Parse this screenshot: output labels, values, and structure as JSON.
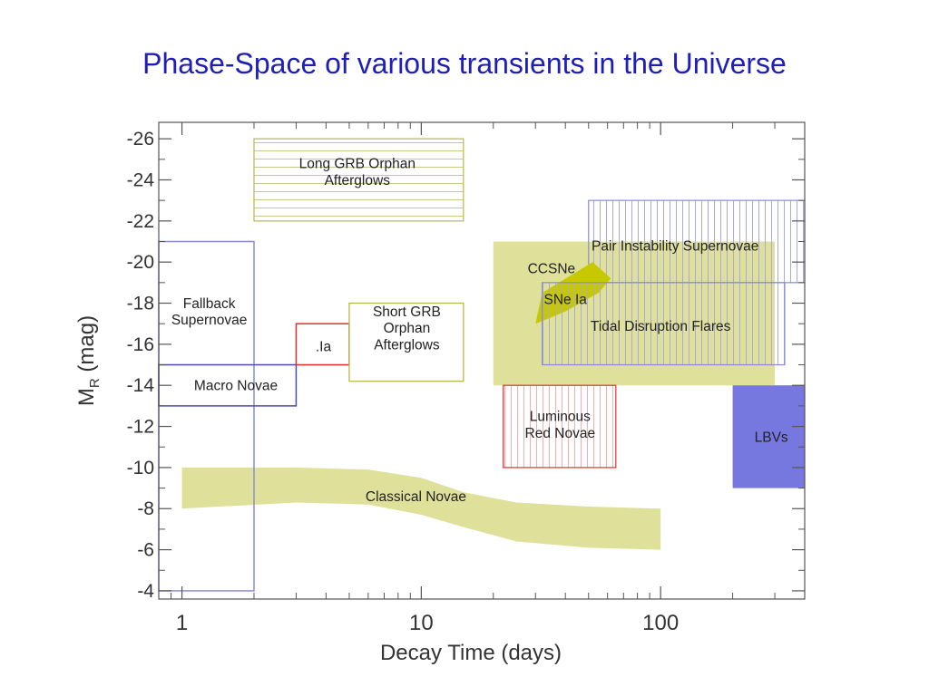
{
  "slide": {
    "title": "Phase-Space of various transients in the Universe"
  },
  "chart_data": {
    "type": "region",
    "title": "",
    "xlabel": "Decay Time (days)",
    "ylabel_main": "M",
    "ylabel_sub": "R",
    "ylabel_unit": "(mag)",
    "xscale": "log",
    "xlim": [
      0.8,
      400
    ],
    "ylim": [
      -3.6,
      -26.8
    ],
    "xticks": [
      {
        "value": 1,
        "label": "1"
      },
      {
        "value": 10,
        "label": "10"
      },
      {
        "value": 100,
        "label": "100"
      }
    ],
    "yticks": [
      {
        "value": -26,
        "label": "-26"
      },
      {
        "value": -24,
        "label": "-24"
      },
      {
        "value": -22,
        "label": "-22"
      },
      {
        "value": -20,
        "label": "-20"
      },
      {
        "value": -18,
        "label": "-18"
      },
      {
        "value": -16,
        "label": "-16"
      },
      {
        "value": -14,
        "label": "-14"
      },
      {
        "value": -12,
        "label": "-12"
      },
      {
        "value": -10,
        "label": "-10"
      },
      {
        "value": -8,
        "label": "-8"
      },
      {
        "value": -6,
        "label": "-6"
      },
      {
        "value": -4,
        "label": "-4"
      }
    ],
    "colors": {
      "yellow": "#dfe09a",
      "olive": "#b8b84a",
      "blue": "#8a8ad8",
      "red": "#e03030",
      "lbv": "#7777e0",
      "snia": "#c8c800"
    },
    "regions": [
      {
        "name": "CCSNe",
        "label_lines": [
          "CCSNe"
        ],
        "style": "yellow-fill",
        "x": [
          20,
          300
        ],
        "y": [
          -14,
          -21
        ],
        "label_at": [
          35,
          -19.7
        ],
        "anchor": "middle"
      },
      {
        "name": "Long GRB Orphan Afterglows",
        "label_lines": [
          "Long GRB Orphan",
          "Afterglows"
        ],
        "style": "olive-hstripe",
        "x": [
          2,
          15
        ],
        "y": [
          -22,
          -26
        ],
        "label_at": [
          5.4,
          -24.4
        ],
        "anchor": "middle"
      },
      {
        "name": "Pair Instability Supernovae",
        "label_lines": [
          "Pair Instability Supernovae"
        ],
        "style": "blue-vstripe",
        "x": [
          50,
          400
        ],
        "y": [
          -19,
          -23
        ],
        "label_at": [
          115,
          -20.8
        ],
        "anchor": "middle"
      },
      {
        "name": "Tidal Disruption Flares",
        "label_lines": [
          "Tidal Disruption Flares"
        ],
        "style": "blue-vstripe",
        "x": [
          32,
          330
        ],
        "y": [
          -15,
          -19
        ],
        "label_at": [
          100,
          -16.9
        ],
        "anchor": "middle"
      },
      {
        "name": "Fallback Supernovae",
        "label_lines": [
          "Fallback",
          "Supernovae"
        ],
        "style": "blue-outline",
        "x": [
          0.8,
          2
        ],
        "y": [
          -4,
          -21
        ],
        "label_at": [
          1.3,
          -17.6
        ],
        "anchor": "middle"
      },
      {
        "name": "Macro Novae",
        "label_lines": [
          "Macro Novae"
        ],
        "style": "navy-outline",
        "x": [
          0.8,
          3
        ],
        "y": [
          -13,
          -15
        ],
        "label_at": [
          1.68,
          -14.0
        ],
        "anchor": "middle"
      },
      {
        "name": ".Ia",
        "label_lines": [
          ".Ia"
        ],
        "style": "red-outline",
        "x": [
          3,
          5
        ],
        "y": [
          -15,
          -17
        ],
        "label_at": [
          3.9,
          -15.9
        ],
        "anchor": "middle"
      },
      {
        "name": "Short GRB Orphan Afterglows",
        "label_lines": [
          "Short GRB",
          "Orphan",
          "Afterglows"
        ],
        "style": "olive-outline",
        "x": [
          5,
          15
        ],
        "y": [
          -14.2,
          -18
        ],
        "label_at": [
          8.7,
          -16.8
        ],
        "anchor": "middle"
      },
      {
        "name": "Luminous Red Novae",
        "label_lines": [
          "Luminous",
          "Red Novae"
        ],
        "style": "red-vstripe",
        "x": [
          22,
          65
        ],
        "y": [
          -10,
          -14
        ],
        "label_at": [
          38,
          -12.1
        ],
        "anchor": "middle"
      },
      {
        "name": "LBVs",
        "label_lines": [
          "LBVs"
        ],
        "style": "lbv-fill",
        "x": [
          200,
          400
        ],
        "y": [
          -9,
          -14
        ],
        "label_at": [
          290,
          -11.5
        ],
        "anchor": "middle"
      }
    ],
    "bands": [
      {
        "name": "Classical Novae",
        "label_lines": [
          "Classical Novae"
        ],
        "upper": [
          [
            1,
            -10
          ],
          [
            3,
            -10
          ],
          [
            6,
            -9.9
          ],
          [
            10,
            -9.5
          ],
          [
            15,
            -8.8
          ],
          [
            25,
            -8.3
          ],
          [
            50,
            -8.1
          ],
          [
            100,
            -8.0
          ]
        ],
        "lower": [
          [
            1,
            -8
          ],
          [
            3,
            -8.3
          ],
          [
            6,
            -8.2
          ],
          [
            10,
            -7.7
          ],
          [
            15,
            -7.1
          ],
          [
            25,
            -6.4
          ],
          [
            50,
            -6.1
          ],
          [
            100,
            -6.0
          ]
        ],
        "label_at": [
          9.5,
          -8.6
        ]
      }
    ],
    "sn_ia_band": {
      "name": "SNe Ia",
      "label_lines": [
        "SNe Ia"
      ],
      "polygon": [
        [
          30,
          -17
        ],
        [
          32,
          -18.5
        ],
        [
          52,
          -20
        ],
        [
          62,
          -19.2
        ],
        [
          55,
          -18.5
        ],
        [
          40,
          -17.6
        ]
      ],
      "label_at": [
        40,
        -18.2
      ]
    }
  }
}
